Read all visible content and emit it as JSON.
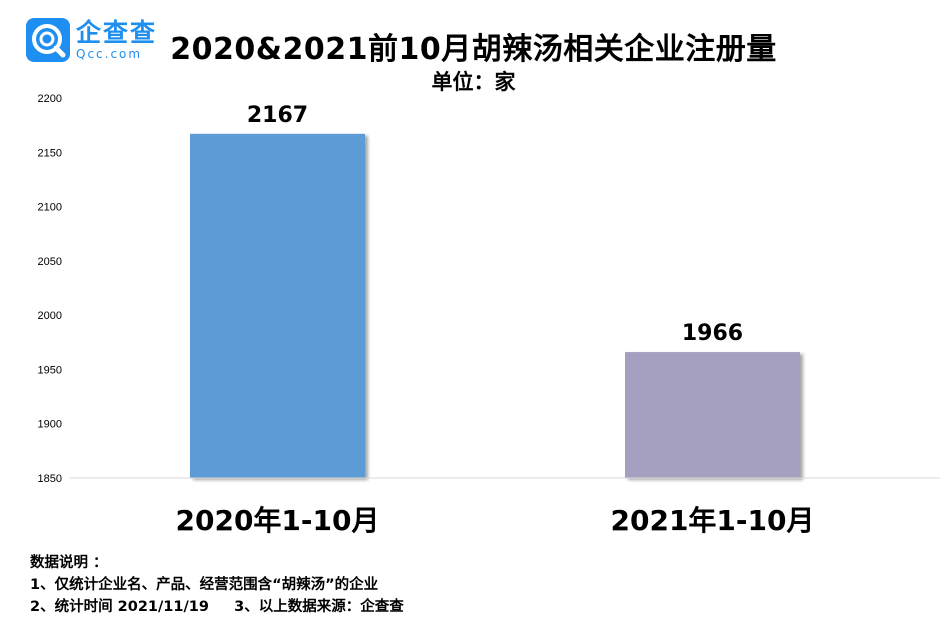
{
  "brand": {
    "cn": "企查查",
    "en": "Qcc.com",
    "color": "#1e8ff0"
  },
  "chart_data": {
    "type": "bar",
    "title": "2020&2021前10月胡辣汤相关企业注册量",
    "subtitle": "单位：家",
    "categories": [
      "2020年1-10月",
      "2021年1-10月"
    ],
    "values": [
      2167,
      1966
    ],
    "data_labels": [
      "2167",
      "1966"
    ],
    "colors": [
      "#5b9bd5",
      "#a5a0c0"
    ],
    "ylim": [
      1850,
      2200
    ],
    "yticks": [
      1850,
      1900,
      1950,
      2000,
      2050,
      2100,
      2150,
      2200
    ],
    "ytick_labels": [
      "1850",
      "1900",
      "1950",
      "2000",
      "2050",
      "2100",
      "2150",
      "2200"
    ],
    "xlabel": "",
    "ylabel": "",
    "grid": false,
    "legend": "none"
  },
  "notes": {
    "heading": "数据说明 ：",
    "line1": "1、仅统计企业名、产品、经营范围含“胡辣汤”的企业",
    "line2": "2、统计时间 2021/11/19     3、以上数据来源：企查查"
  }
}
